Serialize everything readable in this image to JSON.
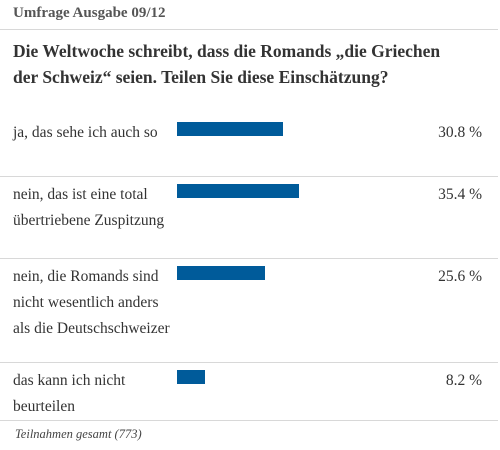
{
  "header": {
    "title": "Umfrage Ausgabe 09/12"
  },
  "question": "Die Weltwoche schreibt, dass die Romands „die Griechen der Schweiz“ seien. Teilen Sie diese Einschätzung?",
  "footer": {
    "text": "Teilnahmen gesamt (773)"
  },
  "colors": {
    "bar": "#005b9a",
    "rule": "#d8d8d8"
  },
  "chart_data": {
    "type": "bar",
    "orientation": "horizontal",
    "categories": [
      "ja, das sehe ich auch so",
      "nein, das ist eine total übertriebene Zuspitzung",
      "nein, die Romands sind nicht wesentlich anders als die Deutschschweizer",
      "das kann ich nicht beurteilen"
    ],
    "values": [
      30.8,
      35.4,
      25.6,
      8.2
    ],
    "value_labels": [
      "30.8 %",
      "35.4 %",
      "25.6 %",
      "8.2 %"
    ]
  }
}
